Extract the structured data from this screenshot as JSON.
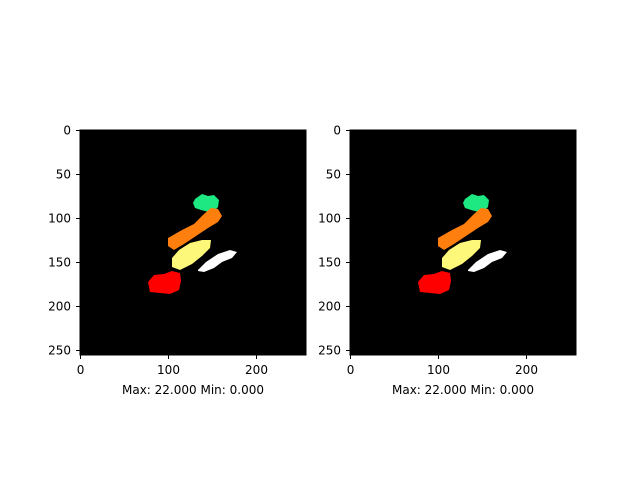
{
  "figure": {
    "panels": [
      {
        "caption": "Max: 22.000 Min: 0.000",
        "image_size": [
          256,
          256
        ],
        "x_ticks": [
          "0",
          "100",
          "200"
        ],
        "y_ticks": [
          "0",
          "50",
          "100",
          "150",
          "200",
          "250"
        ]
      },
      {
        "caption": "Max: 22.000 Min: 0.000",
        "image_size": [
          256,
          256
        ],
        "x_ticks": [
          "0",
          "100",
          "200"
        ],
        "y_ticks": [
          "0",
          "50",
          "100",
          "150",
          "200",
          "250"
        ]
      }
    ],
    "colors": {
      "background": "#000000",
      "green": "#1ee882",
      "orange": "#ff7f0e",
      "yellow": "#fdf87a",
      "white": "#ffffff",
      "red": "#ff0000"
    }
  }
}
